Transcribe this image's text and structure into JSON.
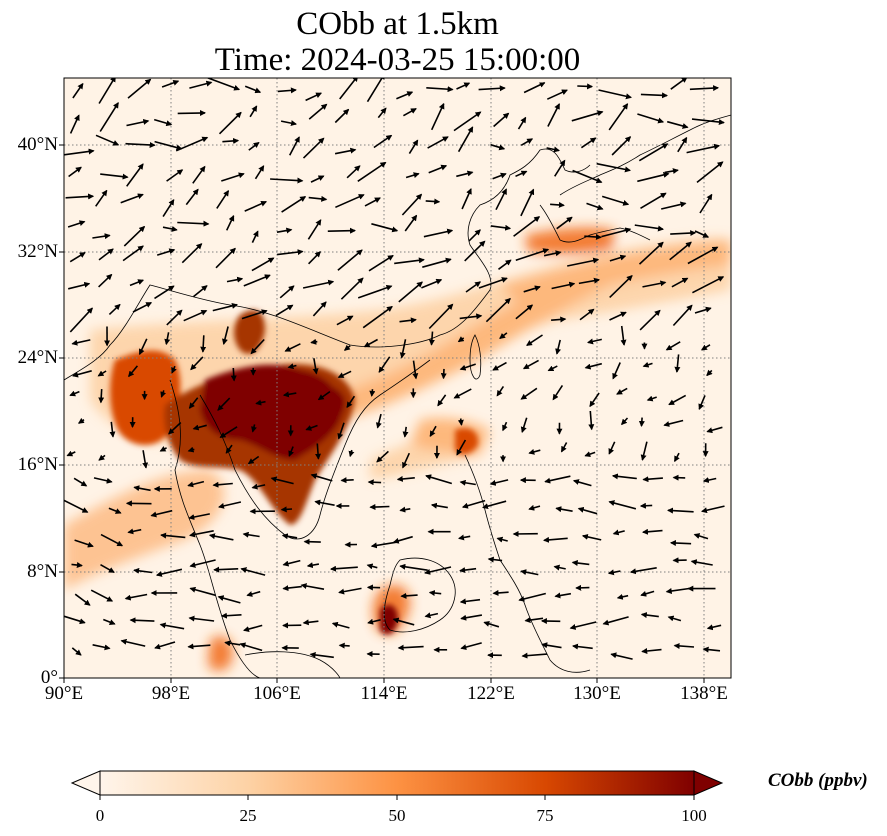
{
  "title": {
    "line1": "CObb at 1.5km",
    "line2": "Time: 2024-03-25 15:00:00"
  },
  "map": {
    "lon_range": [
      90,
      140
    ],
    "lat_range": [
      0,
      45
    ],
    "lon_ticks": [
      "90°E",
      "98°E",
      "106°E",
      "114°E",
      "122°E",
      "130°E",
      "138°E"
    ],
    "lat_ticks": [
      "0°",
      "8°N",
      "16°N",
      "24°N",
      "32°N",
      "40°N"
    ],
    "gridlines": true,
    "wind_vectors": true,
    "coastlines": true
  },
  "colorbar": {
    "label": "CObb (ppbv)",
    "ticks": [
      "0",
      "25",
      "50",
      "75",
      "100"
    ],
    "range": [
      0,
      100
    ],
    "extend": "both",
    "colors": [
      "#fff5eb",
      "#fdd2a5",
      "#fd9243",
      "#d84801",
      "#7f0000"
    ]
  }
}
